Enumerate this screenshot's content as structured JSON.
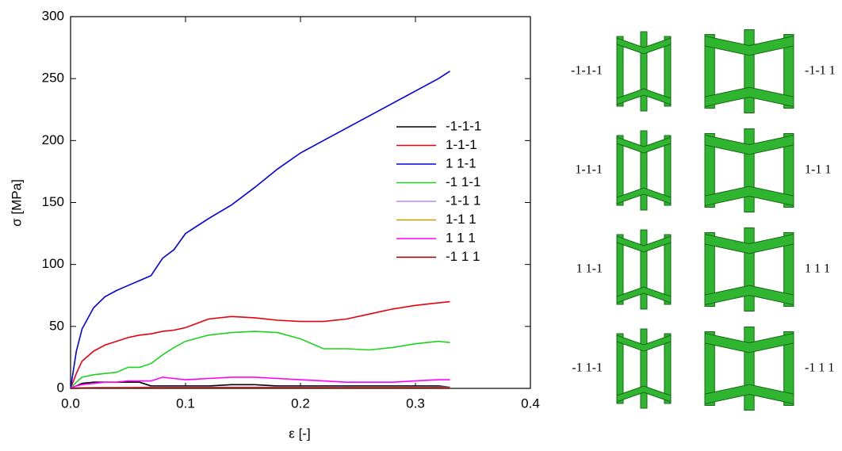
{
  "chart_data": {
    "type": "line",
    "xlabel": "ε [-]",
    "ylabel": "σ [MPa]",
    "xlim": [
      0,
      0.4
    ],
    "ylim": [
      0,
      300
    ],
    "xticks": [
      {
        "value": 0,
        "label": "0.0"
      },
      0.1,
      0.2,
      0.3,
      0.4
    ],
    "yticks": [
      0,
      50,
      100,
      150,
      200,
      250,
      300
    ],
    "legend": "upper right",
    "x": [
      0,
      0.005,
      0.01,
      0.02,
      0.03,
      0.04,
      0.05,
      0.06,
      0.07,
      0.08,
      0.09,
      0.1,
      0.12,
      0.14,
      0.16,
      0.18,
      0.2,
      0.22,
      0.24,
      0.26,
      0.28,
      0.3,
      0.32,
      0.33
    ],
    "series": [
      {
        "name": "-1-1-1",
        "color": "#000000",
        "values": [
          0,
          2,
          4,
          5,
          5,
          5,
          5,
          5,
          2,
          2,
          2,
          2,
          2,
          3,
          3,
          2,
          2,
          2,
          2,
          2,
          2,
          2,
          2,
          1
        ]
      },
      {
        "name": "1-1-1",
        "color": "#e8000b",
        "values": [
          0,
          12,
          22,
          30,
          35,
          38,
          41,
          43,
          44,
          46,
          47,
          49,
          56,
          58,
          57,
          55,
          54,
          54,
          56,
          60,
          64,
          67,
          69,
          70
        ]
      },
      {
        "name": "1 1-1",
        "color": "#0000e6",
        "values": [
          0,
          30,
          48,
          65,
          74,
          79,
          83,
          87,
          91,
          105,
          112,
          125,
          137,
          148,
          162,
          177,
          190,
          200,
          210,
          220,
          230,
          240,
          250,
          256
        ]
      },
      {
        "name": "-1 1-1",
        "color": "#1ed31e",
        "values": [
          0,
          5,
          9,
          11,
          12,
          13,
          17,
          17,
          20,
          27,
          33,
          38,
          43,
          45,
          46,
          45,
          40,
          32,
          32,
          31,
          33,
          36,
          38,
          37
        ]
      },
      {
        "name": "-1-1 1",
        "color": "#b388ff",
        "values": [
          0,
          0.3,
          0.5,
          0.7,
          0.8,
          0.8,
          0.9,
          0.9,
          1,
          1,
          1,
          1,
          1,
          1,
          1,
          1,
          1,
          1,
          1,
          1,
          1,
          1,
          1,
          1
        ]
      },
      {
        "name": "1-1 1",
        "color": "#c89b00",
        "values": [
          0,
          0.2,
          0.3,
          0.4,
          0.5,
          0.5,
          0.5,
          0.6,
          0.6,
          0.6,
          0.6,
          0.6,
          0.6,
          0.6,
          0.6,
          0.6,
          0.6,
          0.6,
          0.6,
          0.6,
          0.6,
          0.6,
          0.6,
          0.6
        ]
      },
      {
        "name": "1 1 1",
        "color": "#ff00ff",
        "values": [
          0,
          2,
          3,
          4,
          5,
          5,
          6,
          6,
          6,
          9,
          8,
          7,
          8,
          9,
          9,
          8,
          7,
          6,
          5,
          5,
          5,
          6,
          7,
          7
        ]
      },
      {
        "name": "-1 1 1",
        "color": "#8b0000",
        "values": [
          0,
          0.1,
          0.2,
          0.3,
          0.3,
          0.3,
          0.3,
          0.4,
          0.4,
          0.4,
          0.4,
          0.4,
          0.4,
          0.4,
          0.4,
          0.4,
          0.4,
          0.4,
          0.4,
          0.4,
          0.4,
          0.4,
          0.4,
          0.4
        ]
      }
    ]
  },
  "structures": [
    {
      "label": "-1-1-1"
    },
    {
      "label": "-1-1 1"
    },
    {
      "label": "1-1-1"
    },
    {
      "label": "1-1 1"
    },
    {
      "label": "1 1-1"
    },
    {
      "label": "1 1 1"
    },
    {
      "label": "-1 1-1"
    },
    {
      "label": "-1 1 1"
    }
  ]
}
